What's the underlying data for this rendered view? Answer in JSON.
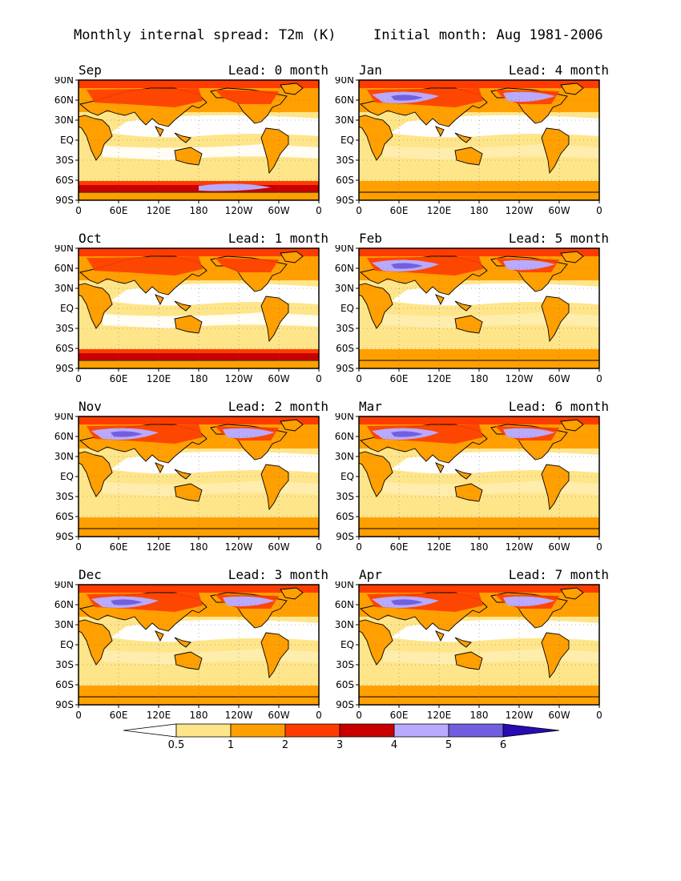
{
  "header": {
    "left": "Monthly internal spread: T2m (K)",
    "right": "Initial month: Aug 1981-2006"
  },
  "lat_labels": [
    "90N",
    "60N",
    "30N",
    "EQ",
    "30S",
    "60S",
    "90S"
  ],
  "lon_labels": [
    "0",
    "60E",
    "120E",
    "180",
    "120W",
    "60W",
    "0"
  ],
  "panels": [
    {
      "month": "Sep",
      "lead": "Lead: 0 month"
    },
    {
      "month": "Jan",
      "lead": "Lead: 4 month"
    },
    {
      "month": "Oct",
      "lead": "Lead: 1 month"
    },
    {
      "month": "Feb",
      "lead": "Lead: 5 month"
    },
    {
      "month": "Nov",
      "lead": "Lead: 2 month"
    },
    {
      "month": "Mar",
      "lead": "Lead: 6 month"
    },
    {
      "month": "Dec",
      "lead": "Lead: 3 month"
    },
    {
      "month": "Apr",
      "lead": "Lead: 7 month"
    }
  ],
  "colorbar": {
    "labels": [
      "0.5",
      "1",
      "2",
      "3",
      "4",
      "5",
      "6"
    ],
    "colors": [
      "#ffffff",
      "#ffe58a",
      "#ff9f00",
      "#ff3c00",
      "#c80000",
      "#b9aaff",
      "#7060e0",
      "#2a0ab4"
    ]
  }
}
